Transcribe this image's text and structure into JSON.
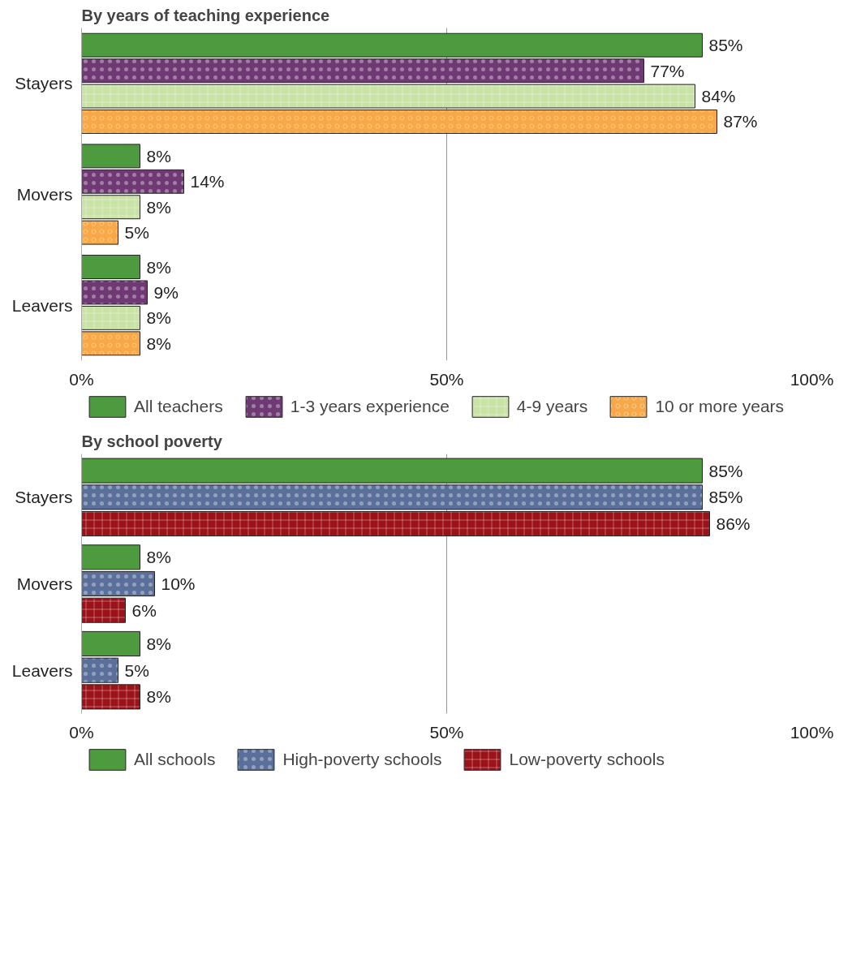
{
  "chart_data": [
    {
      "type": "bar",
      "orientation": "horizontal",
      "title": "By years of teaching experience",
      "categories": [
        "Stayers",
        "Movers",
        "Leavers"
      ],
      "series": [
        {
          "name": "All teachers",
          "color": "#4e9a3e",
          "values": [
            85,
            8,
            8
          ],
          "value_labels": [
            "85%",
            "8%",
            "8%"
          ]
        },
        {
          "name": "1-3 years experience",
          "color": "#6f3a74",
          "values": [
            77,
            14,
            9
          ],
          "value_labels": [
            "77%",
            "14%",
            "9%"
          ]
        },
        {
          "name": "4-9 years",
          "color": "#c9e2a6",
          "values": [
            84,
            8,
            8
          ],
          "value_labels": [
            "84%",
            "8%",
            "8%"
          ]
        },
        {
          "name": "10 or more years",
          "color": "#f7a94a",
          "values": [
            87,
            5,
            8
          ],
          "value_labels": [
            "87%",
            "5%",
            "8%"
          ]
        }
      ],
      "xlim": [
        0,
        100
      ],
      "xticks": [
        {
          "value": 0,
          "label": "0%"
        },
        {
          "value": 50,
          "label": "50%"
        },
        {
          "value": 100,
          "label": "100%"
        }
      ],
      "grid": "x",
      "legend": "bottom"
    },
    {
      "type": "bar",
      "orientation": "horizontal",
      "title": "By school poverty",
      "categories": [
        "Stayers",
        "Movers",
        "Leavers"
      ],
      "series": [
        {
          "name": "All schools",
          "color": "#4e9a3e",
          "values": [
            85,
            8,
            8
          ],
          "value_labels": [
            "85%",
            "8%",
            "8%"
          ]
        },
        {
          "name": "High-poverty schools",
          "color": "#5a6f99",
          "values": [
            85,
            10,
            5
          ],
          "value_labels": [
            "85%",
            "10%",
            "5%"
          ]
        },
        {
          "name": "Low-poverty schools",
          "color": "#9c1219",
          "values": [
            86,
            6,
            8
          ],
          "value_labels": [
            "86%",
            "6%",
            "8%"
          ]
        }
      ],
      "xlim": [
        0,
        100
      ],
      "xticks": [
        {
          "value": 0,
          "label": "0%"
        },
        {
          "value": 50,
          "label": "50%"
        },
        {
          "value": 100,
          "label": "100%"
        }
      ],
      "grid": "x",
      "legend": "bottom"
    }
  ]
}
